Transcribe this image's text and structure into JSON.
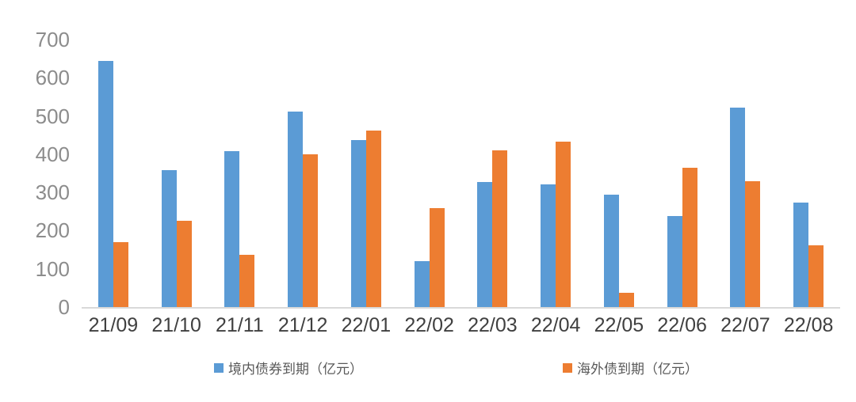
{
  "chart_data": {
    "type": "bar",
    "categories": [
      "21/09",
      "21/10",
      "21/11",
      "21/12",
      "22/01",
      "22/02",
      "22/03",
      "22/04",
      "22/05",
      "22/06",
      "22/07",
      "22/08"
    ],
    "series": [
      {
        "name": "境内债券到期（亿元）",
        "color": "#5B9BD5",
        "values": [
          645,
          358,
          408,
          511,
          437,
          121,
          327,
          322,
          295,
          238,
          522,
          274
        ]
      },
      {
        "name": "海外债到期（亿元）",
        "color": "#ED7D31",
        "values": [
          170,
          226,
          137,
          400,
          462,
          260,
          410,
          433,
          37,
          364,
          330,
          161
        ]
      }
    ],
    "ylim": [
      0,
      700
    ],
    "ytick_step": 100,
    "yticks": [
      "0",
      "100",
      "200",
      "300",
      "400",
      "500",
      "600",
      "700"
    ],
    "grid": false,
    "legend_position": "bottom"
  },
  "colors": {
    "series1": "#5B9BD5",
    "series2": "#ED7D31",
    "axis_line": "#D9D9D9",
    "y_tick_label": "#8C8C8C",
    "x_tick_label": "#404040",
    "legend_text": "#595959",
    "background": "#FFFFFF"
  }
}
